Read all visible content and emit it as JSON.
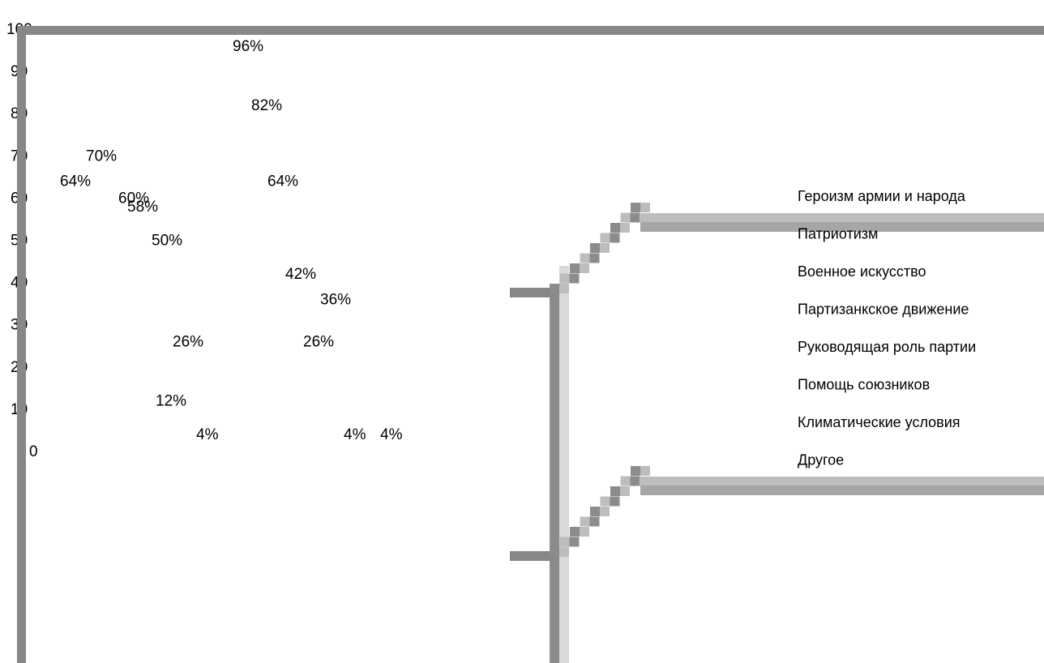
{
  "chart_data": {
    "type": "scatter",
    "ylim": [
      0,
      100
    ],
    "y_ticks": [
      "100",
      "90",
      "80",
      "70",
      "60",
      "50",
      "40",
      "30",
      "20",
      "10",
      "0"
    ],
    "grid": false,
    "legend_position": "right",
    "legend": [
      "Героизм армии и народа",
      "Патриотизм",
      "Военное искусство",
      "Партизанкское движение",
      "Руководящая роль партии",
      "Помощь союзников",
      "Климатические условия",
      "Другое"
    ],
    "series": [
      {
        "name": "Героизм армии и народа",
        "values": [
          64,
          96
        ]
      },
      {
        "name": "Патриотизм",
        "values": [
          70,
          82
        ]
      },
      {
        "name": "Военное искусство",
        "values": [
          60,
          64
        ]
      },
      {
        "name": "Партизанкское движение",
        "values": [
          58,
          42
        ]
      },
      {
        "name": "Руководящая роль партии",
        "values": [
          50,
          36
        ]
      },
      {
        "name": "Помощь союзников",
        "values": [
          12,
          26
        ]
      },
      {
        "name": "Климатические условия",
        "values": [
          26,
          4
        ]
      },
      {
        "name": "Другое",
        "values": [
          4,
          4
        ]
      }
    ],
    "data_labels": [
      {
        "text": "96%",
        "value": 96
      },
      {
        "text": "82%",
        "value": 82
      },
      {
        "text": "70%",
        "value": 70
      },
      {
        "text": "64%",
        "value": 64
      },
      {
        "text": "64%",
        "value": 64
      },
      {
        "text": "60%",
        "value": 60
      },
      {
        "text": "58%",
        "value": 58
      },
      {
        "text": "50%",
        "value": 50
      },
      {
        "text": "42%",
        "value": 42
      },
      {
        "text": "36%",
        "value": 36
      },
      {
        "text": "26%",
        "value": 26
      },
      {
        "text": "26%",
        "value": 26
      },
      {
        "text": "12%",
        "value": 12
      },
      {
        "text": "4%",
        "value": 4
      },
      {
        "text": "4%",
        "value": 4
      },
      {
        "text": "4%",
        "value": 4
      }
    ]
  },
  "colors": {
    "axis": "#878787",
    "frame_dark": "#8c8c8c",
    "frame_mid": "#a6a6a6",
    "frame_light": "#bdbdbd",
    "frame_pale": "#d9d9d9"
  }
}
